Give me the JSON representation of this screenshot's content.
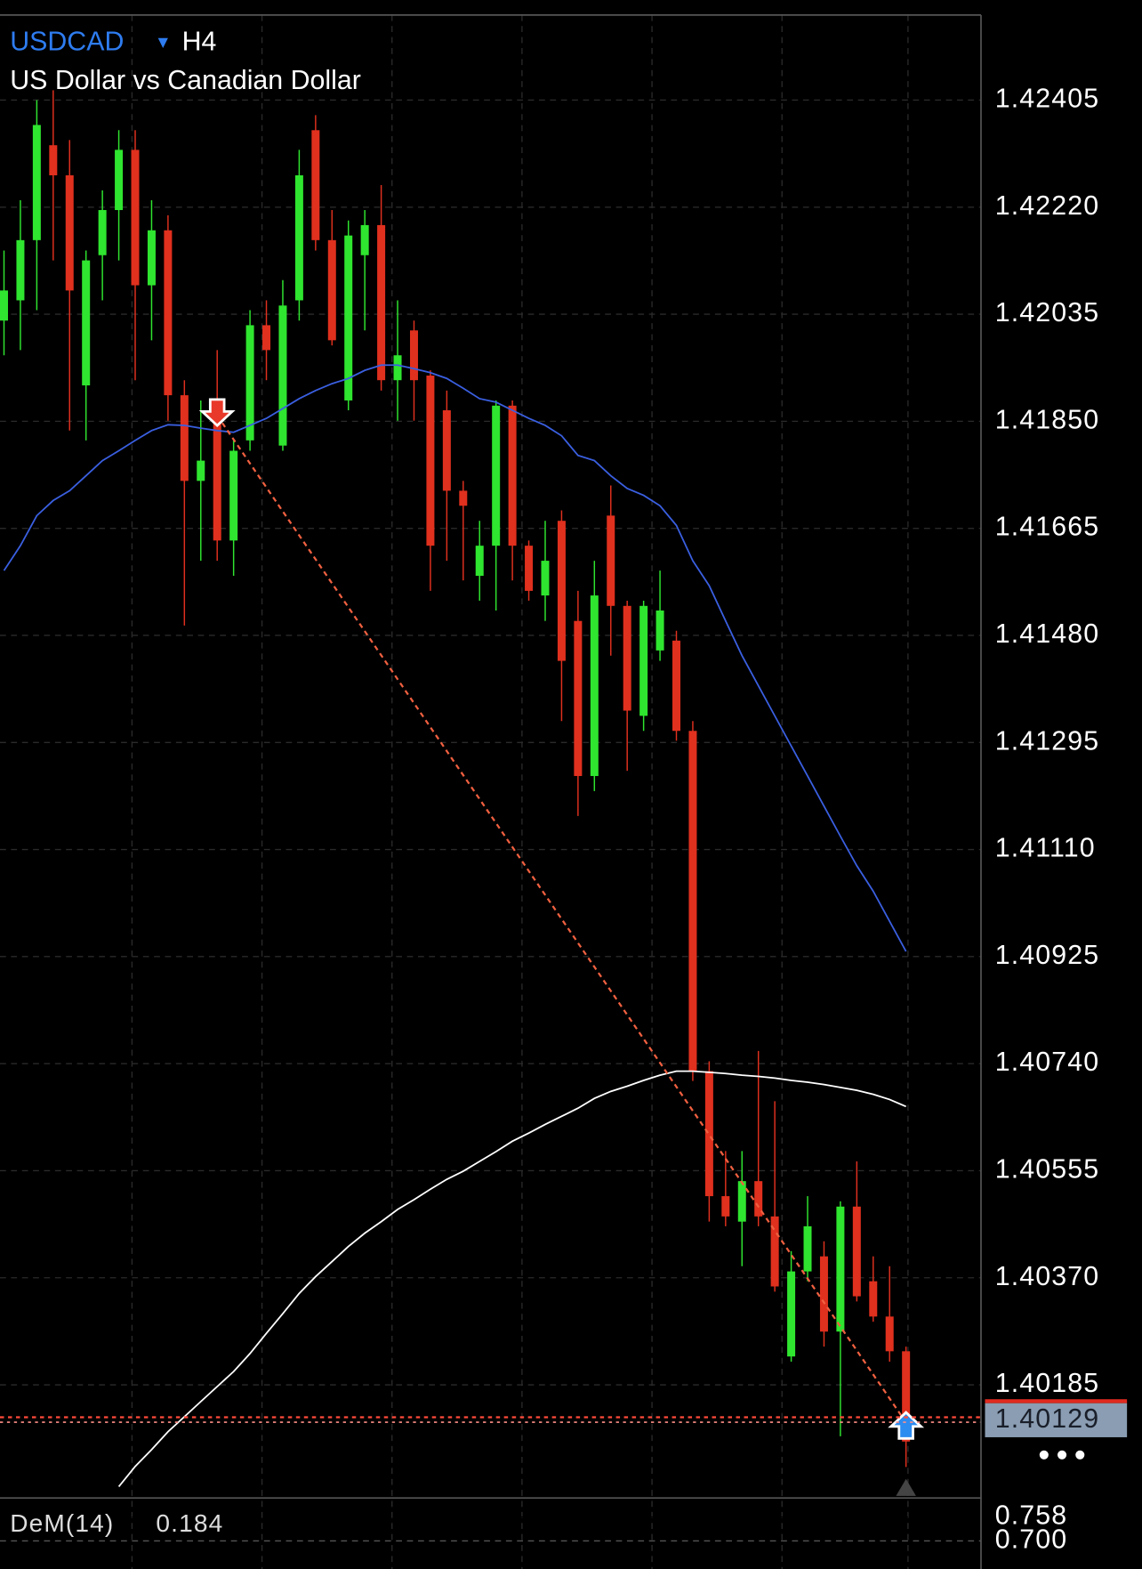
{
  "chart_data": {
    "type": "candlestick",
    "symbol": "USDCAD",
    "timeframe": "H4",
    "subtitle": "US Dollar vs Canadian Dollar",
    "up_color": "#2fe52f",
    "down_color": "#e0301e",
    "grid": true,
    "ylim": [
      1.39993,
      1.42552
    ],
    "yticks": [
      1.42405,
      {
        "value": 1.4222,
        "label": "1.42220"
      },
      1.42035,
      {
        "value": 1.4185,
        "label": "1.41850"
      },
      1.41665,
      {
        "value": 1.4148,
        "label": "1.41480"
      },
      1.41295,
      {
        "value": 1.4111,
        "label": "1.41110"
      },
      1.40925,
      {
        "value": 1.4074,
        "label": "1.40740"
      },
      1.40555,
      {
        "value": 1.4037,
        "label": "1.40370"
      },
      1.40185
    ],
    "current_price": 1.40129,
    "open": [
      1.42024,
      1.42059,
      1.42163,
      1.42327,
      1.42275,
      1.41912,
      1.42137,
      1.42215,
      1.42319,
      1.42085,
      1.4218,
      1.41895,
      1.41747,
      1.41851,
      1.41644,
      1.41817,
      1.42016,
      1.41808,
      1.42059,
      1.42353,
      1.42163,
      1.41886,
      1.42137,
      1.42189,
      1.41921,
      1.42007,
      1.41929,
      1.41869,
      1.4173,
      1.41583,
      1.41635,
      1.41877,
      1.41635,
      1.41549,
      1.41678,
      1.41505,
      1.41237,
      1.41687,
      1.41531,
      1.41341,
      1.41454,
      1.41471,
      1.41315,
      1.40727,
      1.40511,
      1.40467,
      1.40537,
      1.40476,
      1.40234,
      1.40381,
      1.40407,
      1.40277,
      1.40493,
      1.40364,
      1.40303,
      1.40243
    ],
    "high": [
      1.42145,
      1.42232,
      1.42405,
      1.42422,
      1.42336,
      1.42145,
      1.42249,
      1.42353,
      1.42353,
      1.42232,
      1.42206,
      1.41921,
      1.41886,
      1.41973,
      1.41817,
      1.42042,
      1.42059,
      1.42094,
      1.42319,
      1.42379,
      1.42215,
      1.42197,
      1.42215,
      1.42258,
      1.42059,
      1.42024,
      1.41938,
      1.41903,
      1.41747,
      1.41678,
      1.41886,
      1.41886,
      1.41644,
      1.41678,
      1.41696,
      1.41557,
      1.41609,
      1.41739,
      1.4154,
      1.4154,
      1.41592,
      1.41488,
      1.41332,
      1.40744,
      1.40589,
      1.40589,
      1.40762,
      1.40675,
      1.40416,
      1.40511,
      1.40433,
      1.40502,
      1.40571,
      1.40407,
      1.4039,
      1.40251
    ],
    "low": [
      1.41964,
      1.41973,
      1.42042,
      1.42128,
      1.41834,
      1.41817,
      1.42059,
      1.42128,
      1.41921,
      1.4199,
      1.41851,
      1.41497,
      1.41609,
      1.41609,
      1.41583,
      1.41799,
      1.41921,
      1.41799,
      1.42024,
      1.42145,
      1.41981,
      1.41869,
      1.42007,
      1.41903,
      1.41851,
      1.41851,
      1.41557,
      1.41609,
      1.41575,
      1.4154,
      1.41523,
      1.41575,
      1.4154,
      1.41505,
      1.41332,
      1.41168,
      1.41211,
      1.41445,
      1.41246,
      1.41315,
      1.41436,
      1.41298,
      1.4071,
      1.40467,
      1.40459,
      1.4039,
      1.40459,
      1.40346,
      1.40225,
      1.40364,
      1.40251,
      1.40096,
      1.40329,
      1.40294,
      1.40225,
      1.40043
    ],
    "close": [
      1.42076,
      1.42163,
      1.42362,
      1.42275,
      1.42076,
      1.42128,
      1.42215,
      1.42319,
      1.42085,
      1.4218,
      1.41895,
      1.41747,
      1.41782,
      1.41644,
      1.41799,
      1.42016,
      1.41973,
      1.4205,
      1.42275,
      1.42163,
      1.4199,
      1.42171,
      1.42189,
      1.41921,
      1.41964,
      1.41921,
      1.41635,
      1.4173,
      1.41704,
      1.41635,
      1.41877,
      1.41635,
      1.41557,
      1.41609,
      1.41436,
      1.41237,
      1.41549,
      1.41531,
      1.4135,
      1.41531,
      1.41523,
      1.41315,
      1.40727,
      1.40511,
      1.40476,
      1.40537,
      1.40476,
      1.40355,
      1.40381,
      1.40459,
      1.40277,
      1.40493,
      1.40338,
      1.40303,
      1.40243,
      1.40087
    ],
    "series": [
      {
        "color": "#3a5fe0",
        "values": [
          1.41592,
          1.41635,
          1.41687,
          1.41713,
          1.4173,
          1.41756,
          1.41782,
          1.41799,
          1.41817,
          1.41834,
          1.41844,
          1.41843,
          1.41838,
          1.41834,
          1.41831,
          1.41843,
          1.41855,
          1.41872,
          1.41889,
          1.41903,
          1.41915,
          1.41924,
          1.41938,
          1.41947,
          1.41947,
          1.41941,
          1.41934,
          1.41924,
          1.41907,
          1.41889,
          1.41883,
          1.41869,
          1.41855,
          1.41843,
          1.41825,
          1.41791,
          1.41782,
          1.41756,
          1.41734,
          1.41722,
          1.41704,
          1.4167,
          1.41609,
          1.41566,
          1.41505,
          1.41445,
          1.41393,
          1.41341,
          1.41289,
          1.41237,
          1.41185,
          1.41133,
          1.41082,
          1.41038,
          1.40986,
          1.40934
        ]
      },
      {
        "color": "#ffffff",
        "values": [
          null,
          null,
          null,
          null,
          null,
          null,
          null,
          1.40009,
          1.40044,
          1.40073,
          1.40104,
          1.4013,
          1.40156,
          1.40182,
          1.40208,
          1.40239,
          1.40274,
          1.40308,
          1.40343,
          1.40372,
          1.40398,
          1.40424,
          1.40447,
          1.40467,
          1.40488,
          1.40505,
          1.40523,
          1.4054,
          1.40554,
          1.40571,
          1.40588,
          1.40606,
          1.4062,
          1.40635,
          1.40649,
          1.40663,
          1.4068,
          1.40692,
          1.40701,
          1.40711,
          1.4072,
          1.40727,
          1.40727,
          1.40725,
          1.40723,
          1.4072,
          1.40718,
          1.40715,
          1.40711,
          1.40708,
          1.40704,
          1.40699,
          1.40694,
          1.40687,
          1.40678,
          1.40666
        ]
      }
    ],
    "signals": [
      {
        "x": 13,
        "value": 1.4186,
        "direction": "down",
        "color": "#e8392a"
      },
      {
        "x": 55,
        "value": 1.4012,
        "direction": "up",
        "color": "#2d8cf0"
      }
    ],
    "indicator": {
      "name": "DeM(14)",
      "value": 0.184,
      "ylim": [
        0.632,
        0.804
      ],
      "yticks": [
        0.758,
        {
          "value": 0.7,
          "label": "0.700"
        }
      ]
    }
  }
}
